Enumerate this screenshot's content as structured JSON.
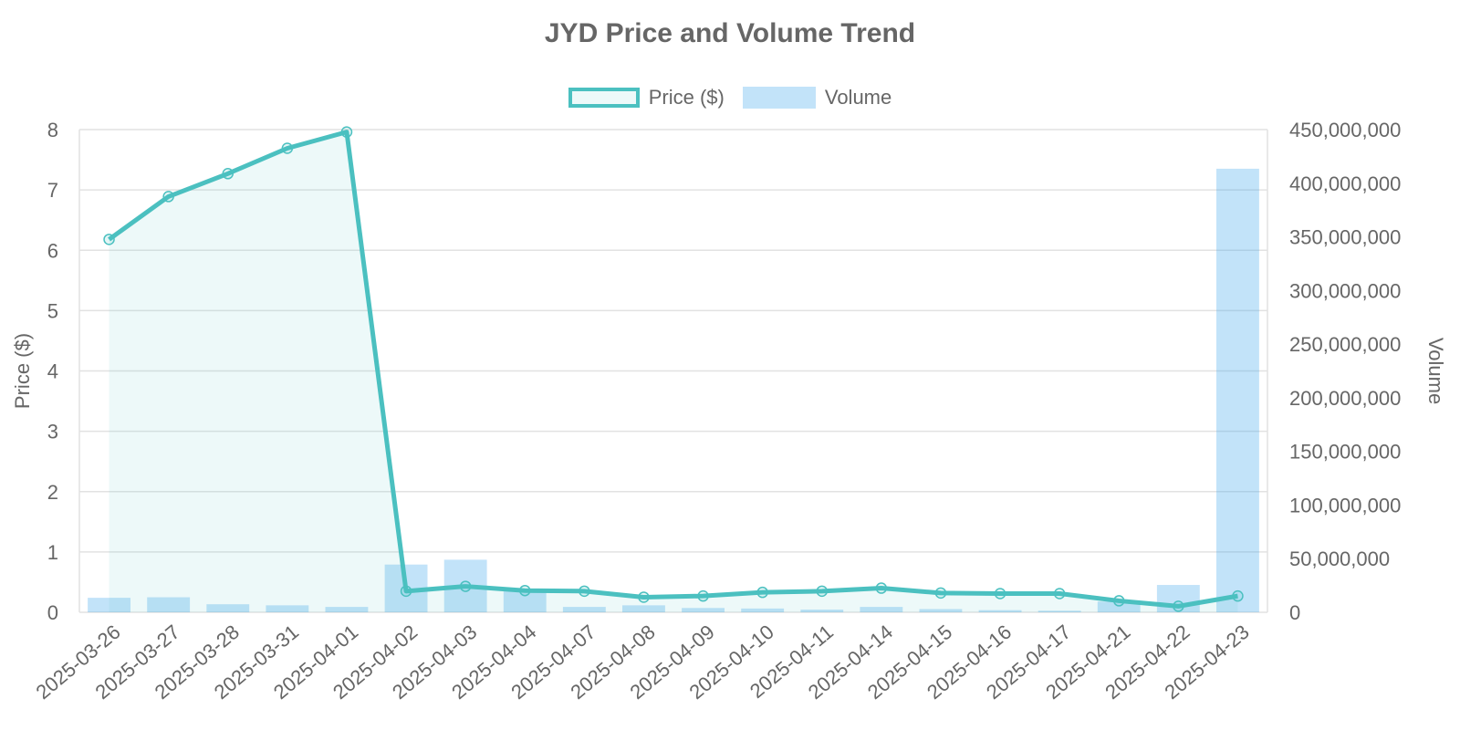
{
  "chart_data": {
    "type": "line+bar",
    "title": "JYD Price and Volume Trend",
    "categories": [
      "2025-03-26",
      "2025-03-27",
      "2025-03-28",
      "2025-03-31",
      "2025-04-01",
      "2025-04-02",
      "2025-04-03",
      "2025-04-04",
      "2025-04-07",
      "2025-04-08",
      "2025-04-09",
      "2025-04-10",
      "2025-04-11",
      "2025-04-14",
      "2025-04-15",
      "2025-04-16",
      "2025-04-17",
      "2025-04-21",
      "2025-04-22",
      "2025-04-23"
    ],
    "series": [
      {
        "name": "Price ($)",
        "type": "line",
        "axis": "left",
        "color": "#4bc0c0",
        "values": [
          6.18,
          6.89,
          7.27,
          7.69,
          7.96,
          0.35,
          0.43,
          0.36,
          0.35,
          0.25,
          0.27,
          0.33,
          0.35,
          0.4,
          0.32,
          0.31,
          0.31,
          0.19,
          0.1,
          0.27
        ]
      },
      {
        "name": "Volume",
        "type": "bar",
        "axis": "right",
        "color": "#36a2eb",
        "values": [
          13500000,
          14000000,
          7500000,
          6500000,
          5000000,
          44500000,
          49000000,
          21000000,
          5000000,
          6500000,
          4000000,
          3500000,
          2500000,
          5000000,
          3000000,
          2000000,
          1500000,
          10000000,
          25500000,
          413500000
        ]
      }
    ],
    "ylabel": "Price ($)",
    "y2label": "Volume",
    "ylim": [
      0,
      8
    ],
    "yticks": [
      "0",
      "1",
      "2",
      "3",
      "4",
      "5",
      "6",
      "7",
      "8"
    ],
    "y2lim": [
      0,
      450000000
    ],
    "y2ticks": [
      "0",
      "50,000,000",
      "100,000,000",
      "150,000,000",
      "200,000,000",
      "250,000,000",
      "300,000,000",
      "350,000,000",
      "400,000,000",
      "450,000,000"
    ],
    "grid": true,
    "legend_position": "top-center"
  }
}
